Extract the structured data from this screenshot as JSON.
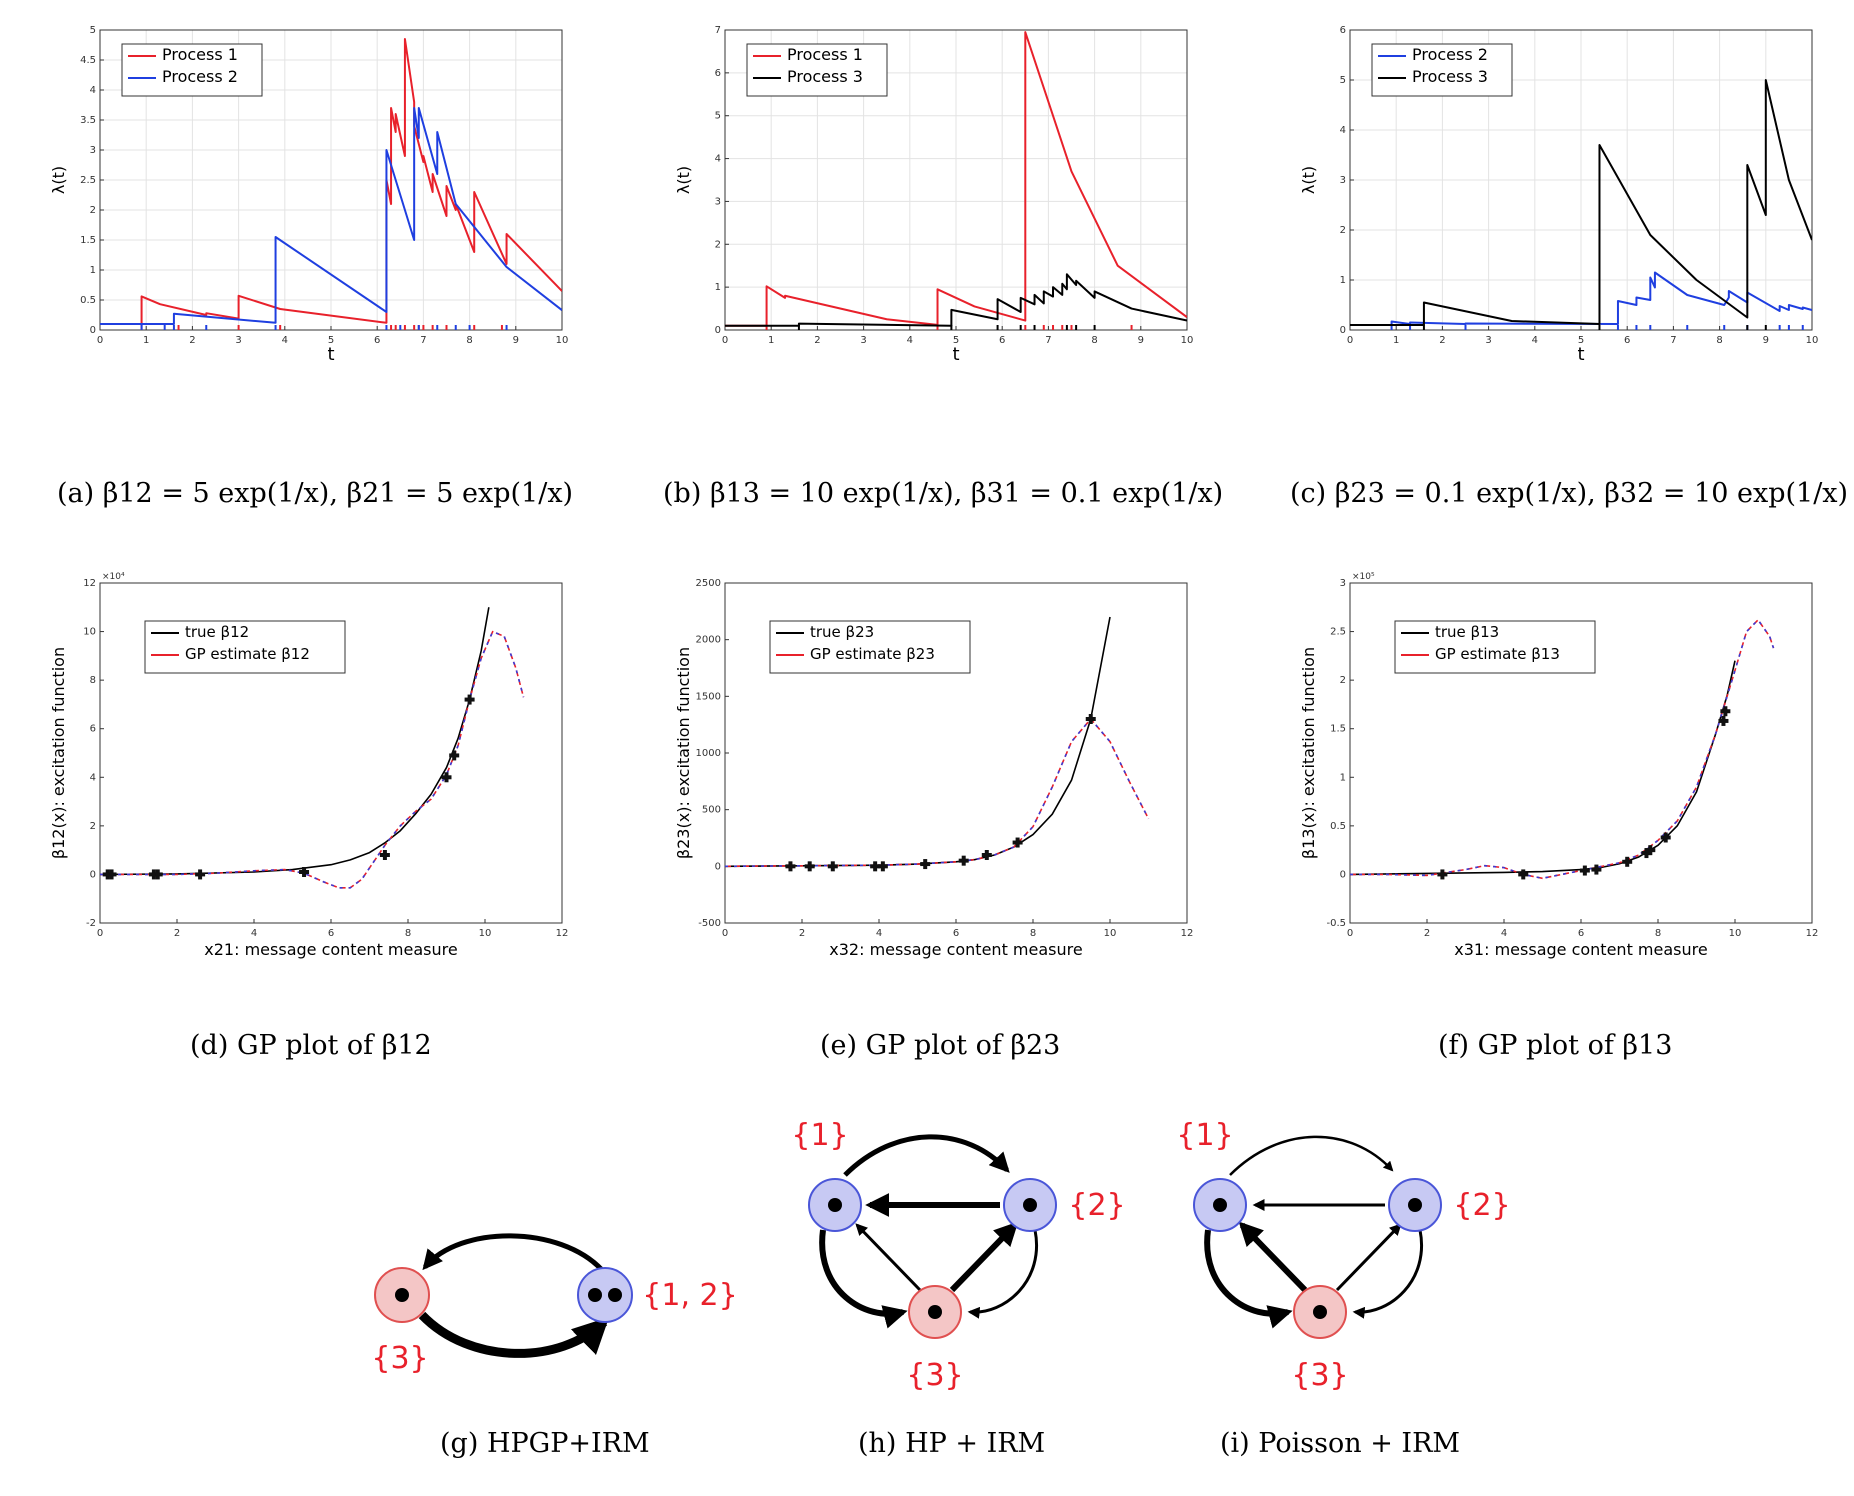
{
  "chart_data": [
    {
      "id": "a",
      "type": "line",
      "caption": {
        "tag": "(a)",
        "text": "β12 = 5 exp(1/x), β21 = 5 exp(1/x)"
      },
      "xlabel": "t",
      "ylabel": "λ(t)",
      "xlim": [
        0,
        10
      ],
      "ylim": [
        0,
        5
      ],
      "xticks": [
        0,
        1,
        2,
        3,
        4,
        5,
        6,
        7,
        8,
        9,
        10
      ],
      "yticks": [
        0,
        0.5,
        1,
        1.5,
        2,
        2.5,
        3,
        3.5,
        4,
        4.5,
        5
      ],
      "grid": true,
      "legend_position": "top-left",
      "series": [
        {
          "name": "Process 1",
          "color": "#e8212b",
          "x": [
            0,
            0.9,
            0.9,
            1.3,
            1.3,
            2.3,
            2.3,
            3.0,
            3.0,
            3.9,
            6.2,
            6.2,
            6.3,
            6.3,
            6.4,
            6.4,
            6.6,
            6.6,
            6.8,
            6.8,
            7.0,
            7.0,
            7.2,
            7.2,
            7.5,
            7.5,
            7.7,
            7.7,
            8.1,
            8.1,
            8.8,
            8.8,
            10
          ],
          "y": [
            0.1,
            0.1,
            0.56,
            0.43,
            0.43,
            0.25,
            0.28,
            0.19,
            0.57,
            0.35,
            0.12,
            2.5,
            2.1,
            3.7,
            3.3,
            3.6,
            2.9,
            4.85,
            3.8,
            3.4,
            2.8,
            2.9,
            2.3,
            2.6,
            1.9,
            2.4,
            2.0,
            2.1,
            1.3,
            2.3,
            1.1,
            1.6,
            0.65
          ]
        },
        {
          "name": "Process 2",
          "color": "#1f3fe0",
          "x": [
            0,
            1.6,
            1.6,
            3.8,
            3.8,
            6.2,
            6.2,
            6.8,
            6.8,
            6.9,
            6.9,
            7.3,
            7.3,
            7.7,
            8.8,
            10
          ],
          "y": [
            0.1,
            0.1,
            0.27,
            0.12,
            1.55,
            0.3,
            3.0,
            1.5,
            3.7,
            3.2,
            3.7,
            2.6,
            3.3,
            2.1,
            1.05,
            0.33
          ]
        }
      ],
      "event_marks": {
        "Process 1": [
          0.9,
          1.7,
          3.0,
          3.9,
          6.3,
          6.4,
          6.6,
          6.8,
          6.9,
          7.0,
          7.2,
          7.5,
          8.1,
          8.7
        ],
        "Process 2": [
          0.9,
          1.4,
          1.6,
          2.3,
          3.8,
          6.2,
          6.5,
          6.9,
          7.3,
          7.7,
          8.0,
          8.8
        ]
      }
    },
    {
      "id": "b",
      "type": "line",
      "caption": {
        "tag": "(b)",
        "text": "β13 = 10 exp(1/x), β31 = 0.1 exp(1/x)"
      },
      "xlabel": "t",
      "ylabel": "λ(t)",
      "xlim": [
        0,
        10
      ],
      "ylim": [
        0,
        7
      ],
      "xticks": [
        0,
        1,
        2,
        3,
        4,
        5,
        6,
        7,
        8,
        9,
        10
      ],
      "yticks": [
        0,
        1,
        2,
        3,
        4,
        5,
        6,
        7
      ],
      "grid": true,
      "legend_position": "top-left",
      "series": [
        {
          "name": "Process 1",
          "color": "#e8212b",
          "x": [
            0,
            0.9,
            0.9,
            1.3,
            1.3,
            3.5,
            4.6,
            4.6,
            5.4,
            6.5,
            6.5,
            7.5,
            8.5,
            10
          ],
          "y": [
            0.1,
            0.1,
            1.02,
            0.75,
            0.8,
            0.25,
            0.12,
            0.95,
            0.55,
            0.22,
            6.95,
            3.7,
            1.5,
            0.3
          ]
        },
        {
          "name": "Process 3",
          "color": "#000000",
          "x": [
            0,
            1.6,
            1.6,
            4.9,
            4.9,
            5.9,
            5.9,
            6.4,
            6.4,
            6.7,
            6.7,
            6.9,
            6.9,
            7.1,
            7.1,
            7.3,
            7.3,
            7.4,
            7.4,
            7.6,
            7.6,
            8.0,
            8.0,
            8.8,
            10
          ],
          "y": [
            0.1,
            0.1,
            0.15,
            0.1,
            0.47,
            0.25,
            0.72,
            0.42,
            0.75,
            0.6,
            0.82,
            0.62,
            0.9,
            0.78,
            1.0,
            0.82,
            1.08,
            0.95,
            1.3,
            1.05,
            1.15,
            0.75,
            0.9,
            0.5,
            0.22
          ]
        }
      ],
      "event_marks": {
        "Process 1": [
          0.9,
          4.6,
          6.5,
          6.9,
          7.1,
          7.3,
          7.5,
          8.8
        ],
        "Process 3": [
          1.6,
          4.9,
          5.9,
          6.4,
          6.7,
          7.4,
          7.6,
          8.0
        ]
      }
    },
    {
      "id": "c",
      "type": "line",
      "caption": {
        "tag": "(c)",
        "text": "β23 = 0.1 exp(1/x), β32 = 10 exp(1/x)"
      },
      "xlabel": "t",
      "ylabel": "λ(t)",
      "xlim": [
        0,
        10
      ],
      "ylim": [
        0,
        6
      ],
      "xticks": [
        0,
        1,
        2,
        3,
        4,
        5,
        6,
        7,
        8,
        9,
        10
      ],
      "yticks": [
        0,
        1,
        2,
        3,
        4,
        5,
        6
      ],
      "grid": true,
      "legend_position": "top-left",
      "series": [
        {
          "name": "Process 2",
          "color": "#1f3fe0",
          "x": [
            0,
            0.9,
            0.9,
            1.3,
            1.3,
            2.5,
            2.5,
            5.8,
            5.8,
            6.2,
            6.2,
            6.5,
            6.5,
            6.6,
            6.6,
            7.3,
            8.1,
            8.2,
            8.2,
            8.6,
            8.6,
            9.3,
            9.3,
            9.5,
            9.5,
            9.8,
            9.8,
            10
          ],
          "y": [
            0.1,
            0.1,
            0.17,
            0.12,
            0.15,
            0.12,
            0.13,
            0.12,
            0.58,
            0.5,
            0.65,
            0.6,
            1.05,
            0.85,
            1.15,
            0.7,
            0.5,
            0.65,
            0.78,
            0.55,
            0.75,
            0.38,
            0.48,
            0.4,
            0.5,
            0.42,
            0.45,
            0.4
          ]
        },
        {
          "name": "Process 3",
          "color": "#000000",
          "x": [
            0,
            1.6,
            1.6,
            3.5,
            5.4,
            5.4,
            6.5,
            7.5,
            8.6,
            8.6,
            9.0,
            9.0,
            9.5,
            10
          ],
          "y": [
            0.1,
            0.1,
            0.55,
            0.18,
            0.12,
            3.7,
            1.9,
            1.0,
            0.25,
            3.3,
            2.3,
            5.0,
            3.0,
            1.8
          ]
        }
      ],
      "event_marks": {
        "Process 2": [
          0.9,
          1.3,
          2.5,
          5.8,
          6.2,
          6.5,
          7.3,
          8.1,
          8.6,
          9.3,
          9.5,
          9.8
        ],
        "Process 3": [
          1.6,
          5.4,
          8.6,
          9.0
        ]
      }
    },
    {
      "id": "d",
      "type": "line",
      "caption": {
        "tag": "(d)",
        "text": "GP plot of β12"
      },
      "xlabel": "x21: message content measure",
      "ylabel": "β12(x): excitation function",
      "y_multiplier": "×10⁴",
      "xlim": [
        0,
        12
      ],
      "ylim": [
        -2,
        12
      ],
      "xticks": [
        0,
        2,
        4,
        6,
        8,
        10,
        12
      ],
      "yticks": [
        -2,
        0,
        2,
        4,
        6,
        8,
        10,
        12
      ],
      "grid": false,
      "legend_position": "top-left",
      "series": [
        {
          "name": "true β12",
          "color": "#000000",
          "x": [
            0,
            2,
            4,
            5,
            6,
            6.5,
            7,
            7.4,
            7.8,
            8.2,
            8.6,
            9.0,
            9.3,
            9.6,
            9.9,
            10.1
          ],
          "y": [
            0,
            0.02,
            0.1,
            0.2,
            0.4,
            0.6,
            0.9,
            1.3,
            1.8,
            2.5,
            3.3,
            4.4,
            5.6,
            7.2,
            9.2,
            11.0
          ]
        },
        {
          "name": "GP estimate β12",
          "color": "#e8212b",
          "x": [
            0,
            1,
            2,
            3,
            4,
            4.8,
            5.3,
            5.8,
            6.2,
            6.5,
            6.8,
            7.1,
            7.4,
            7.8,
            8.2,
            8.6,
            9.0,
            9.3,
            9.6,
            9.9,
            10.2,
            10.5,
            10.8,
            11.0
          ],
          "y": [
            0,
            0,
            0,
            0.05,
            0.15,
            0.2,
            0.05,
            -0.3,
            -0.55,
            -0.55,
            -0.2,
            0.5,
            1.2,
            2.0,
            2.6,
            3.1,
            4.1,
            5.3,
            7.2,
            8.9,
            10.0,
            9.8,
            8.5,
            7.3
          ]
        }
      ],
      "observations": {
        "x": [
          0.2,
          0.3,
          1.4,
          1.5,
          2.6,
          5.3,
          7.4,
          9.0,
          9.2,
          9.6
        ],
        "y": [
          0,
          0,
          0,
          0,
          0,
          0.1,
          0.8,
          4.0,
          4.9,
          7.2
        ]
      }
    },
    {
      "id": "e",
      "type": "line",
      "caption": {
        "tag": "(e)",
        "text": "GP plot of β23"
      },
      "xlabel": "x32: message content measure",
      "ylabel": "β23(x): excitation function",
      "xlim": [
        0,
        12
      ],
      "ylim": [
        -500,
        2500
      ],
      "xticks": [
        0,
        2,
        4,
        6,
        8,
        10,
        12
      ],
      "yticks": [
        -500,
        0,
        500,
        1000,
        1500,
        2000,
        2500
      ],
      "grid": false,
      "legend_position": "top-left",
      "series": [
        {
          "name": "true β23",
          "color": "#000000",
          "x": [
            0,
            2,
            4,
            5,
            6,
            6.5,
            7,
            7.5,
            8,
            8.5,
            9,
            9.5,
            10
          ],
          "y": [
            0,
            5,
            10,
            20,
            40,
            60,
            100,
            170,
            280,
            460,
            760,
            1300,
            2200
          ]
        },
        {
          "name": "GP estimate β23",
          "color": "#e8212b",
          "x": [
            0,
            2,
            4,
            5,
            6,
            6.5,
            7,
            7.5,
            8,
            8.5,
            9,
            9.5,
            10,
            10.5,
            11
          ],
          "y": [
            0,
            5,
            10,
            20,
            40,
            60,
            100,
            170,
            350,
            700,
            1100,
            1300,
            1100,
            750,
            420
          ]
        }
      ],
      "observations": {
        "x": [
          1.7,
          2.2,
          2.8,
          3.9,
          4.1,
          5.2,
          6.2,
          6.8,
          7.6,
          9.5
        ],
        "y": [
          0,
          0,
          0,
          0,
          0,
          20,
          50,
          100,
          210,
          1300
        ]
      }
    },
    {
      "id": "f",
      "type": "line",
      "caption": {
        "tag": "(f)",
        "text": "GP plot of β13"
      },
      "xlabel": "x31: message content measure",
      "ylabel": "β13(x): excitation function",
      "y_multiplier": "×10⁵",
      "xlim": [
        0,
        12
      ],
      "ylim": [
        -0.5,
        3
      ],
      "xticks": [
        0,
        2,
        4,
        6,
        8,
        10,
        12
      ],
      "yticks": [
        -0.5,
        0,
        0.5,
        1,
        1.5,
        2,
        2.5,
        3
      ],
      "grid": false,
      "legend_position": "top-left",
      "series": [
        {
          "name": "true β13",
          "color": "#000000",
          "x": [
            0,
            2,
            4,
            5,
            6,
            6.5,
            7,
            7.5,
            8,
            8.5,
            9,
            9.5,
            9.8,
            10.0
          ],
          "y": [
            0,
            0.01,
            0.02,
            0.03,
            0.05,
            0.07,
            0.11,
            0.18,
            0.3,
            0.5,
            0.85,
            1.45,
            1.85,
            2.2
          ]
        },
        {
          "name": "GP estimate β13",
          "color": "#e8212b",
          "x": [
            0,
            1,
            2,
            3,
            3.5,
            4,
            4.5,
            5,
            5.5,
            6,
            6.5,
            7,
            7.5,
            8,
            8.5,
            9,
            9.5,
            10,
            10.3,
            10.6,
            10.9,
            11.0
          ],
          "y": [
            0,
            0,
            -0.01,
            0.05,
            0.09,
            0.07,
            0.0,
            -0.04,
            0.0,
            0.04,
            0.08,
            0.12,
            0.2,
            0.35,
            0.55,
            0.9,
            1.45,
            2.1,
            2.5,
            2.62,
            2.45,
            2.33
          ]
        }
      ],
      "observations": {
        "x": [
          2.4,
          4.5,
          6.1,
          6.4,
          7.2,
          7.7,
          7.8,
          8.2,
          9.7,
          9.75
        ],
        "y": [
          0,
          0,
          0.04,
          0.05,
          0.13,
          0.22,
          0.25,
          0.38,
          1.58,
          1.68
        ]
      }
    }
  ],
  "diagrams": {
    "g": {
      "caption": {
        "tag": "(g)",
        "text": "HPGP+IRM"
      },
      "nodes": [
        {
          "id": "n3",
          "label": "{3}",
          "fill": "#f4c6c6",
          "stroke": "#e05050",
          "dots": 1
        },
        {
          "id": "n12",
          "label": "{1, 2}",
          "fill": "#c7c9f3",
          "stroke": "#4a56d8",
          "dots": 2
        }
      ],
      "edges": [
        {
          "from": "n12",
          "to": "n3",
          "weight": "medium"
        },
        {
          "from": "n3",
          "to": "n12",
          "weight": "heavy"
        }
      ]
    },
    "h": {
      "caption": {
        "tag": "(h)",
        "text": "HP + IRM"
      },
      "nodes": [
        {
          "id": "n1",
          "label": "{1}",
          "fill": "#c7c9f3",
          "stroke": "#4a56d8",
          "dots": 1
        },
        {
          "id": "n2",
          "label": "{2}",
          "fill": "#c7c9f3",
          "stroke": "#4a56d8",
          "dots": 1
        },
        {
          "id": "n3",
          "label": "{3}",
          "fill": "#f4c6c6",
          "stroke": "#e05050",
          "dots": 1
        }
      ]
    },
    "i": {
      "caption": {
        "tag": "(i)",
        "text": "Poisson + IRM"
      },
      "nodes": [
        {
          "id": "n1",
          "label": "{1}",
          "fill": "#c7c9f3",
          "stroke": "#4a56d8",
          "dots": 1
        },
        {
          "id": "n2",
          "label": "{2}",
          "fill": "#c7c9f3",
          "stroke": "#4a56d8",
          "dots": 1
        },
        {
          "id": "n3",
          "label": "{3}",
          "fill": "#f4c6c6",
          "stroke": "#e05050",
          "dots": 1
        }
      ]
    }
  }
}
